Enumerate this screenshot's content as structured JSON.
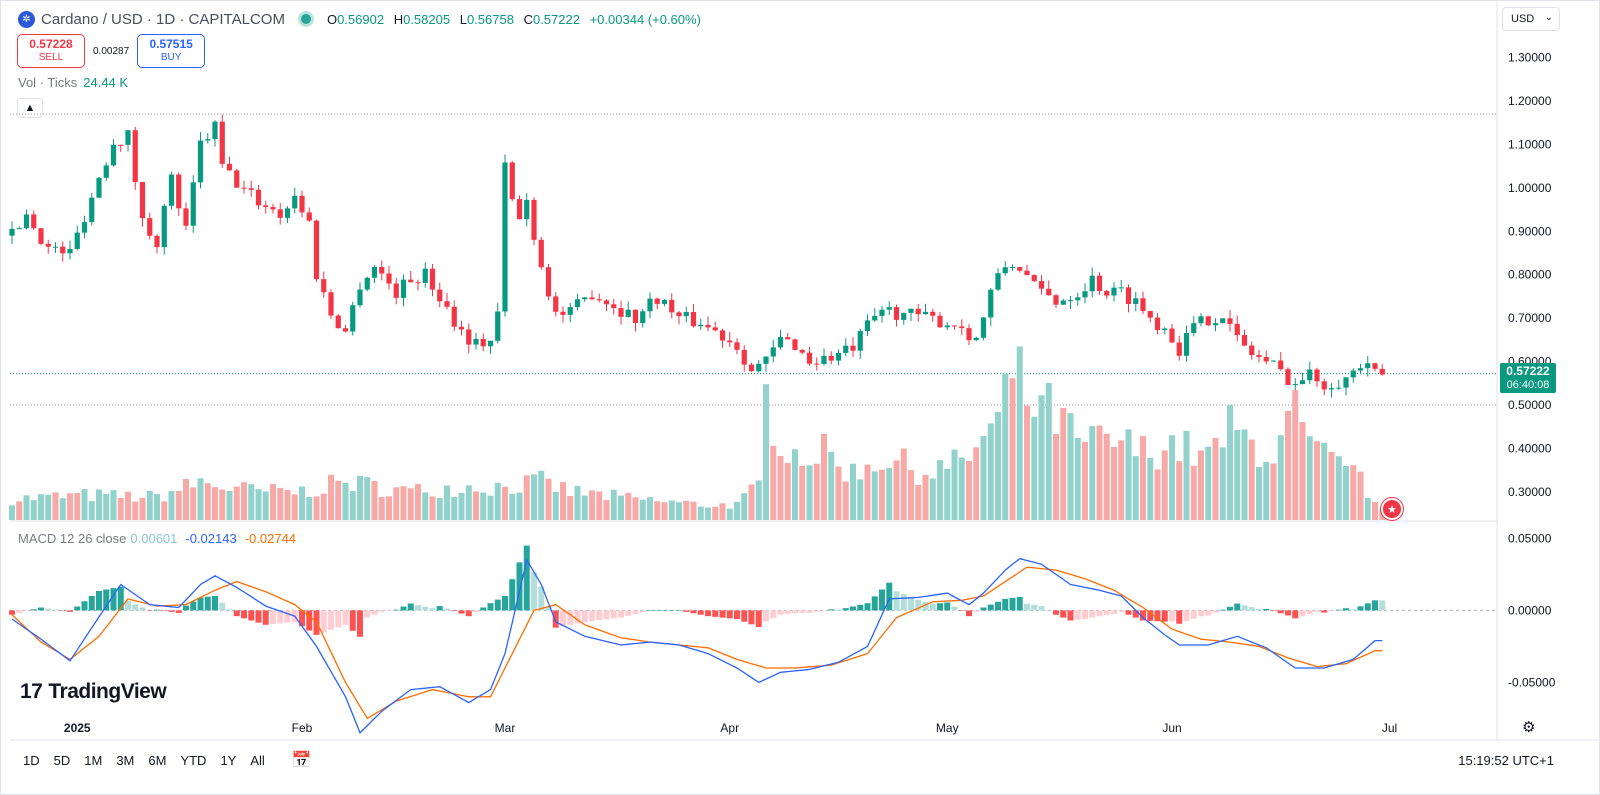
{
  "header": {
    "logo_glyph": "✲",
    "title": "Cardano / USD · 1D · CAPITALCOM",
    "ohlc": {
      "o_label": "O",
      "o": "0.56902",
      "h_label": "H",
      "h": "0.58205",
      "l_label": "L",
      "l": "0.56758",
      "c_label": "C",
      "c": "0.57222",
      "change": "+0.00344 (+0.60%)"
    }
  },
  "trade": {
    "sell_price": "0.57228",
    "sell_label": "SELL",
    "spread": "0.00287",
    "buy_price": "0.57515",
    "buy_label": "BUY"
  },
  "volume_legend": {
    "label": "Vol · Ticks",
    "value": "24.44 K"
  },
  "macd_legend": {
    "label": "MACD 12 26 close",
    "hist": "0.00601",
    "macd": "-0.02143",
    "signal": "-0.02744"
  },
  "currency": {
    "value": "USD",
    "chevron": "⌄"
  },
  "last_price": {
    "value": "0.57222",
    "countdown": "06:40:08"
  },
  "brand": {
    "mark": "17",
    "name": "TradingView"
  },
  "bottom_bar": {
    "ranges": [
      "1D",
      "5D",
      "1M",
      "3M",
      "6M",
      "YTD",
      "1Y",
      "All"
    ],
    "clock": "15:19:52 UTC+1",
    "calendar_icon": "📅"
  },
  "colors": {
    "up": "#089981",
    "down": "#f23645",
    "vol_up": "#92d2cc",
    "vol_down": "#f7a9a7",
    "macd": "#2962ff",
    "signal": "#ff6d00"
  },
  "chart_data": {
    "type": "candlestick",
    "price_axis": {
      "ticks": [
        "1.30000",
        "1.20000",
        "1.10000",
        "1.00000",
        "0.90000",
        "0.80000",
        "0.70000",
        "0.60000",
        "0.50000",
        "0.40000",
        "0.30000"
      ],
      "range": [
        0.235,
        1.35
      ]
    },
    "macd_axis": {
      "ticks": [
        "0.05000",
        "0.00000",
        "-0.05000"
      ],
      "range": [
        -0.09,
        0.06
      ]
    },
    "time_labels": [
      {
        "label": "2025",
        "index": 9
      },
      {
        "label": "Feb",
        "index": 40
      },
      {
        "label": "Mar",
        "index": 68
      },
      {
        "label": "Apr",
        "index": 99
      },
      {
        "label": "May",
        "index": 129
      },
      {
        "label": "Jun",
        "index": 160
      },
      {
        "label": "Jul",
        "index": 190
      }
    ],
    "reference_lines": [
      1.17,
      0.5
    ],
    "anchors": [
      [
        0,
        0.89
      ],
      [
        2,
        0.94
      ],
      [
        5,
        0.86
      ],
      [
        8,
        0.85
      ],
      [
        11,
        0.98
      ],
      [
        14,
        1.11
      ],
      [
        16,
        1.12
      ],
      [
        18,
        0.92
      ],
      [
        20,
        0.88
      ],
      [
        22,
        1.02
      ],
      [
        24,
        0.9
      ],
      [
        26,
        1.1
      ],
      [
        28,
        1.14
      ],
      [
        29,
        1.05
      ],
      [
        31,
        1.01
      ],
      [
        34,
        0.97
      ],
      [
        37,
        0.94
      ],
      [
        39,
        0.98
      ],
      [
        41,
        0.92
      ],
      [
        42,
        0.8
      ],
      [
        44,
        0.71
      ],
      [
        46,
        0.67
      ],
      [
        48,
        0.78
      ],
      [
        50,
        0.82
      ],
      [
        53,
        0.76
      ],
      [
        55,
        0.79
      ],
      [
        57,
        0.8
      ],
      [
        59,
        0.75
      ],
      [
        62,
        0.67
      ],
      [
        64,
        0.64
      ],
      [
        66,
        0.65
      ],
      [
        67,
        0.71
      ],
      [
        68,
        1.05
      ],
      [
        69,
        0.97
      ],
      [
        70,
        0.93
      ],
      [
        71,
        0.97
      ],
      [
        73,
        0.82
      ],
      [
        75,
        0.71
      ],
      [
        77,
        0.71
      ],
      [
        80,
        0.76
      ],
      [
        83,
        0.73
      ],
      [
        86,
        0.7
      ],
      [
        89,
        0.75
      ],
      [
        92,
        0.7
      ],
      [
        95,
        0.69
      ],
      [
        98,
        0.66
      ],
      [
        100,
        0.64
      ],
      [
        102,
        0.58
      ],
      [
        104,
        0.6
      ],
      [
        106,
        0.65
      ],
      [
        108,
        0.64
      ],
      [
        110,
        0.6
      ],
      [
        113,
        0.61
      ],
      [
        116,
        0.63
      ],
      [
        118,
        0.68
      ],
      [
        120,
        0.72
      ],
      [
        123,
        0.71
      ],
      [
        126,
        0.7
      ],
      [
        129,
        0.69
      ],
      [
        131,
        0.68
      ],
      [
        133,
        0.65
      ],
      [
        135,
        0.76
      ],
      [
        137,
        0.82
      ],
      [
        139,
        0.82
      ],
      [
        141,
        0.77
      ],
      [
        144,
        0.74
      ],
      [
        147,
        0.76
      ],
      [
        149,
        0.79
      ],
      [
        151,
        0.76
      ],
      [
        153,
        0.76
      ],
      [
        155,
        0.74
      ],
      [
        157,
        0.7
      ],
      [
        159,
        0.68
      ],
      [
        161,
        0.63
      ],
      [
        163,
        0.68
      ],
      [
        165,
        0.7
      ],
      [
        167,
        0.71
      ],
      [
        169,
        0.65
      ],
      [
        171,
        0.62
      ],
      [
        174,
        0.59
      ],
      [
        177,
        0.55
      ],
      [
        179,
        0.57
      ],
      [
        181,
        0.55
      ],
      [
        184,
        0.56
      ],
      [
        186,
        0.59
      ],
      [
        188,
        0.57
      ]
    ],
    "volume": [
      [
        0,
        22
      ],
      [
        10,
        26
      ],
      [
        20,
        24
      ],
      [
        26,
        40
      ],
      [
        29,
        35
      ],
      [
        34,
        30
      ],
      [
        40,
        30
      ],
      [
        46,
        40
      ],
      [
        55,
        30
      ],
      [
        62,
        35
      ],
      [
        68,
        35
      ],
      [
        73,
        40
      ],
      [
        77,
        30
      ],
      [
        86,
        22
      ],
      [
        95,
        16
      ],
      [
        100,
        16
      ],
      [
        103,
        36
      ],
      [
        104,
        126
      ],
      [
        106,
        90
      ],
      [
        108,
        70
      ],
      [
        112,
        70
      ],
      [
        116,
        50
      ],
      [
        120,
        66
      ],
      [
        126,
        50
      ],
      [
        131,
        60
      ],
      [
        134,
        85
      ],
      [
        136,
        100
      ],
      [
        138,
        155
      ],
      [
        141,
        120
      ],
      [
        144,
        110
      ],
      [
        147,
        80
      ],
      [
        152,
        82
      ],
      [
        156,
        72
      ],
      [
        160,
        80
      ],
      [
        165,
        65
      ],
      [
        168,
        95
      ],
      [
        171,
        80
      ],
      [
        174,
        70
      ],
      [
        177,
        110
      ],
      [
        179,
        75
      ],
      [
        182,
        60
      ],
      [
        184,
        50
      ],
      [
        186,
        45
      ],
      [
        188,
        15
      ]
    ],
    "macd_series": {
      "macd": [
        [
          0,
          -0.006
        ],
        [
          4,
          -0.02
        ],
        [
          8,
          -0.035
        ],
        [
          11,
          -0.012
        ],
        [
          15,
          0.018
        ],
        [
          19,
          0.004
        ],
        [
          23,
          0.002
        ],
        [
          26,
          0.018
        ],
        [
          28,
          0.024
        ],
        [
          31,
          0.016
        ],
        [
          35,
          0.003
        ],
        [
          39,
          -0.004
        ],
        [
          42,
          -0.025
        ],
        [
          46,
          -0.06
        ],
        [
          48,
          -0.085
        ],
        [
          51,
          -0.07
        ],
        [
          55,
          -0.055
        ],
        [
          59,
          -0.053
        ],
        [
          63,
          -0.064
        ],
        [
          66,
          -0.055
        ],
        [
          68,
          -0.03
        ],
        [
          71,
          0.035
        ],
        [
          73,
          0.018
        ],
        [
          75,
          -0.008
        ],
        [
          79,
          -0.018
        ],
        [
          84,
          -0.024
        ],
        [
          88,
          -0.022
        ],
        [
          92,
          -0.024
        ],
        [
          96,
          -0.03
        ],
        [
          100,
          -0.04
        ],
        [
          103,
          -0.05
        ],
        [
          106,
          -0.043
        ],
        [
          110,
          -0.041
        ],
        [
          114,
          -0.036
        ],
        [
          118,
          -0.025
        ],
        [
          121,
          0.008
        ],
        [
          125,
          0.009
        ],
        [
          129,
          0.012
        ],
        [
          132,
          0.004
        ],
        [
          134,
          0.012
        ],
        [
          137,
          0.028
        ],
        [
          139,
          0.036
        ],
        [
          142,
          0.032
        ],
        [
          146,
          0.018
        ],
        [
          150,
          0.014
        ],
        [
          153,
          0.01
        ],
        [
          156,
          -0.005
        ],
        [
          159,
          -0.017
        ],
        [
          161,
          -0.024
        ],
        [
          165,
          -0.024
        ],
        [
          169,
          -0.018
        ],
        [
          173,
          -0.026
        ],
        [
          177,
          -0.04
        ],
        [
          181,
          -0.04
        ],
        [
          185,
          -0.034
        ],
        [
          188,
          -0.021
        ]
      ],
      "signal": [
        [
          0,
          -0.003
        ],
        [
          4,
          -0.022
        ],
        [
          8,
          -0.034
        ],
        [
          12,
          -0.018
        ],
        [
          16,
          0.008
        ],
        [
          20,
          0.003
        ],
        [
          24,
          0.004
        ],
        [
          28,
          0.014
        ],
        [
          31,
          0.02
        ],
        [
          35,
          0.013
        ],
        [
          39,
          0.004
        ],
        [
          42,
          -0.008
        ],
        [
          46,
          -0.05
        ],
        [
          49,
          -0.075
        ],
        [
          53,
          -0.063
        ],
        [
          58,
          -0.055
        ],
        [
          63,
          -0.06
        ],
        [
          66,
          -0.06
        ],
        [
          69,
          -0.03
        ],
        [
          72,
          0.0
        ],
        [
          75,
          0.004
        ],
        [
          79,
          -0.01
        ],
        [
          84,
          -0.019
        ],
        [
          88,
          -0.022
        ],
        [
          92,
          -0.024
        ],
        [
          96,
          -0.026
        ],
        [
          100,
          -0.034
        ],
        [
          104,
          -0.04
        ],
        [
          108,
          -0.04
        ],
        [
          113,
          -0.038
        ],
        [
          118,
          -0.03
        ],
        [
          122,
          -0.005
        ],
        [
          127,
          0.006
        ],
        [
          131,
          0.007
        ],
        [
          134,
          0.01
        ],
        [
          137,
          0.02
        ],
        [
          140,
          0.03
        ],
        [
          144,
          0.028
        ],
        [
          148,
          0.022
        ],
        [
          152,
          0.014
        ],
        [
          156,
          0.002
        ],
        [
          160,
          -0.013
        ],
        [
          164,
          -0.02
        ],
        [
          168,
          -0.022
        ],
        [
          172,
          -0.025
        ],
        [
          176,
          -0.033
        ],
        [
          180,
          -0.039
        ],
        [
          184,
          -0.037
        ],
        [
          188,
          -0.028
        ]
      ]
    }
  }
}
